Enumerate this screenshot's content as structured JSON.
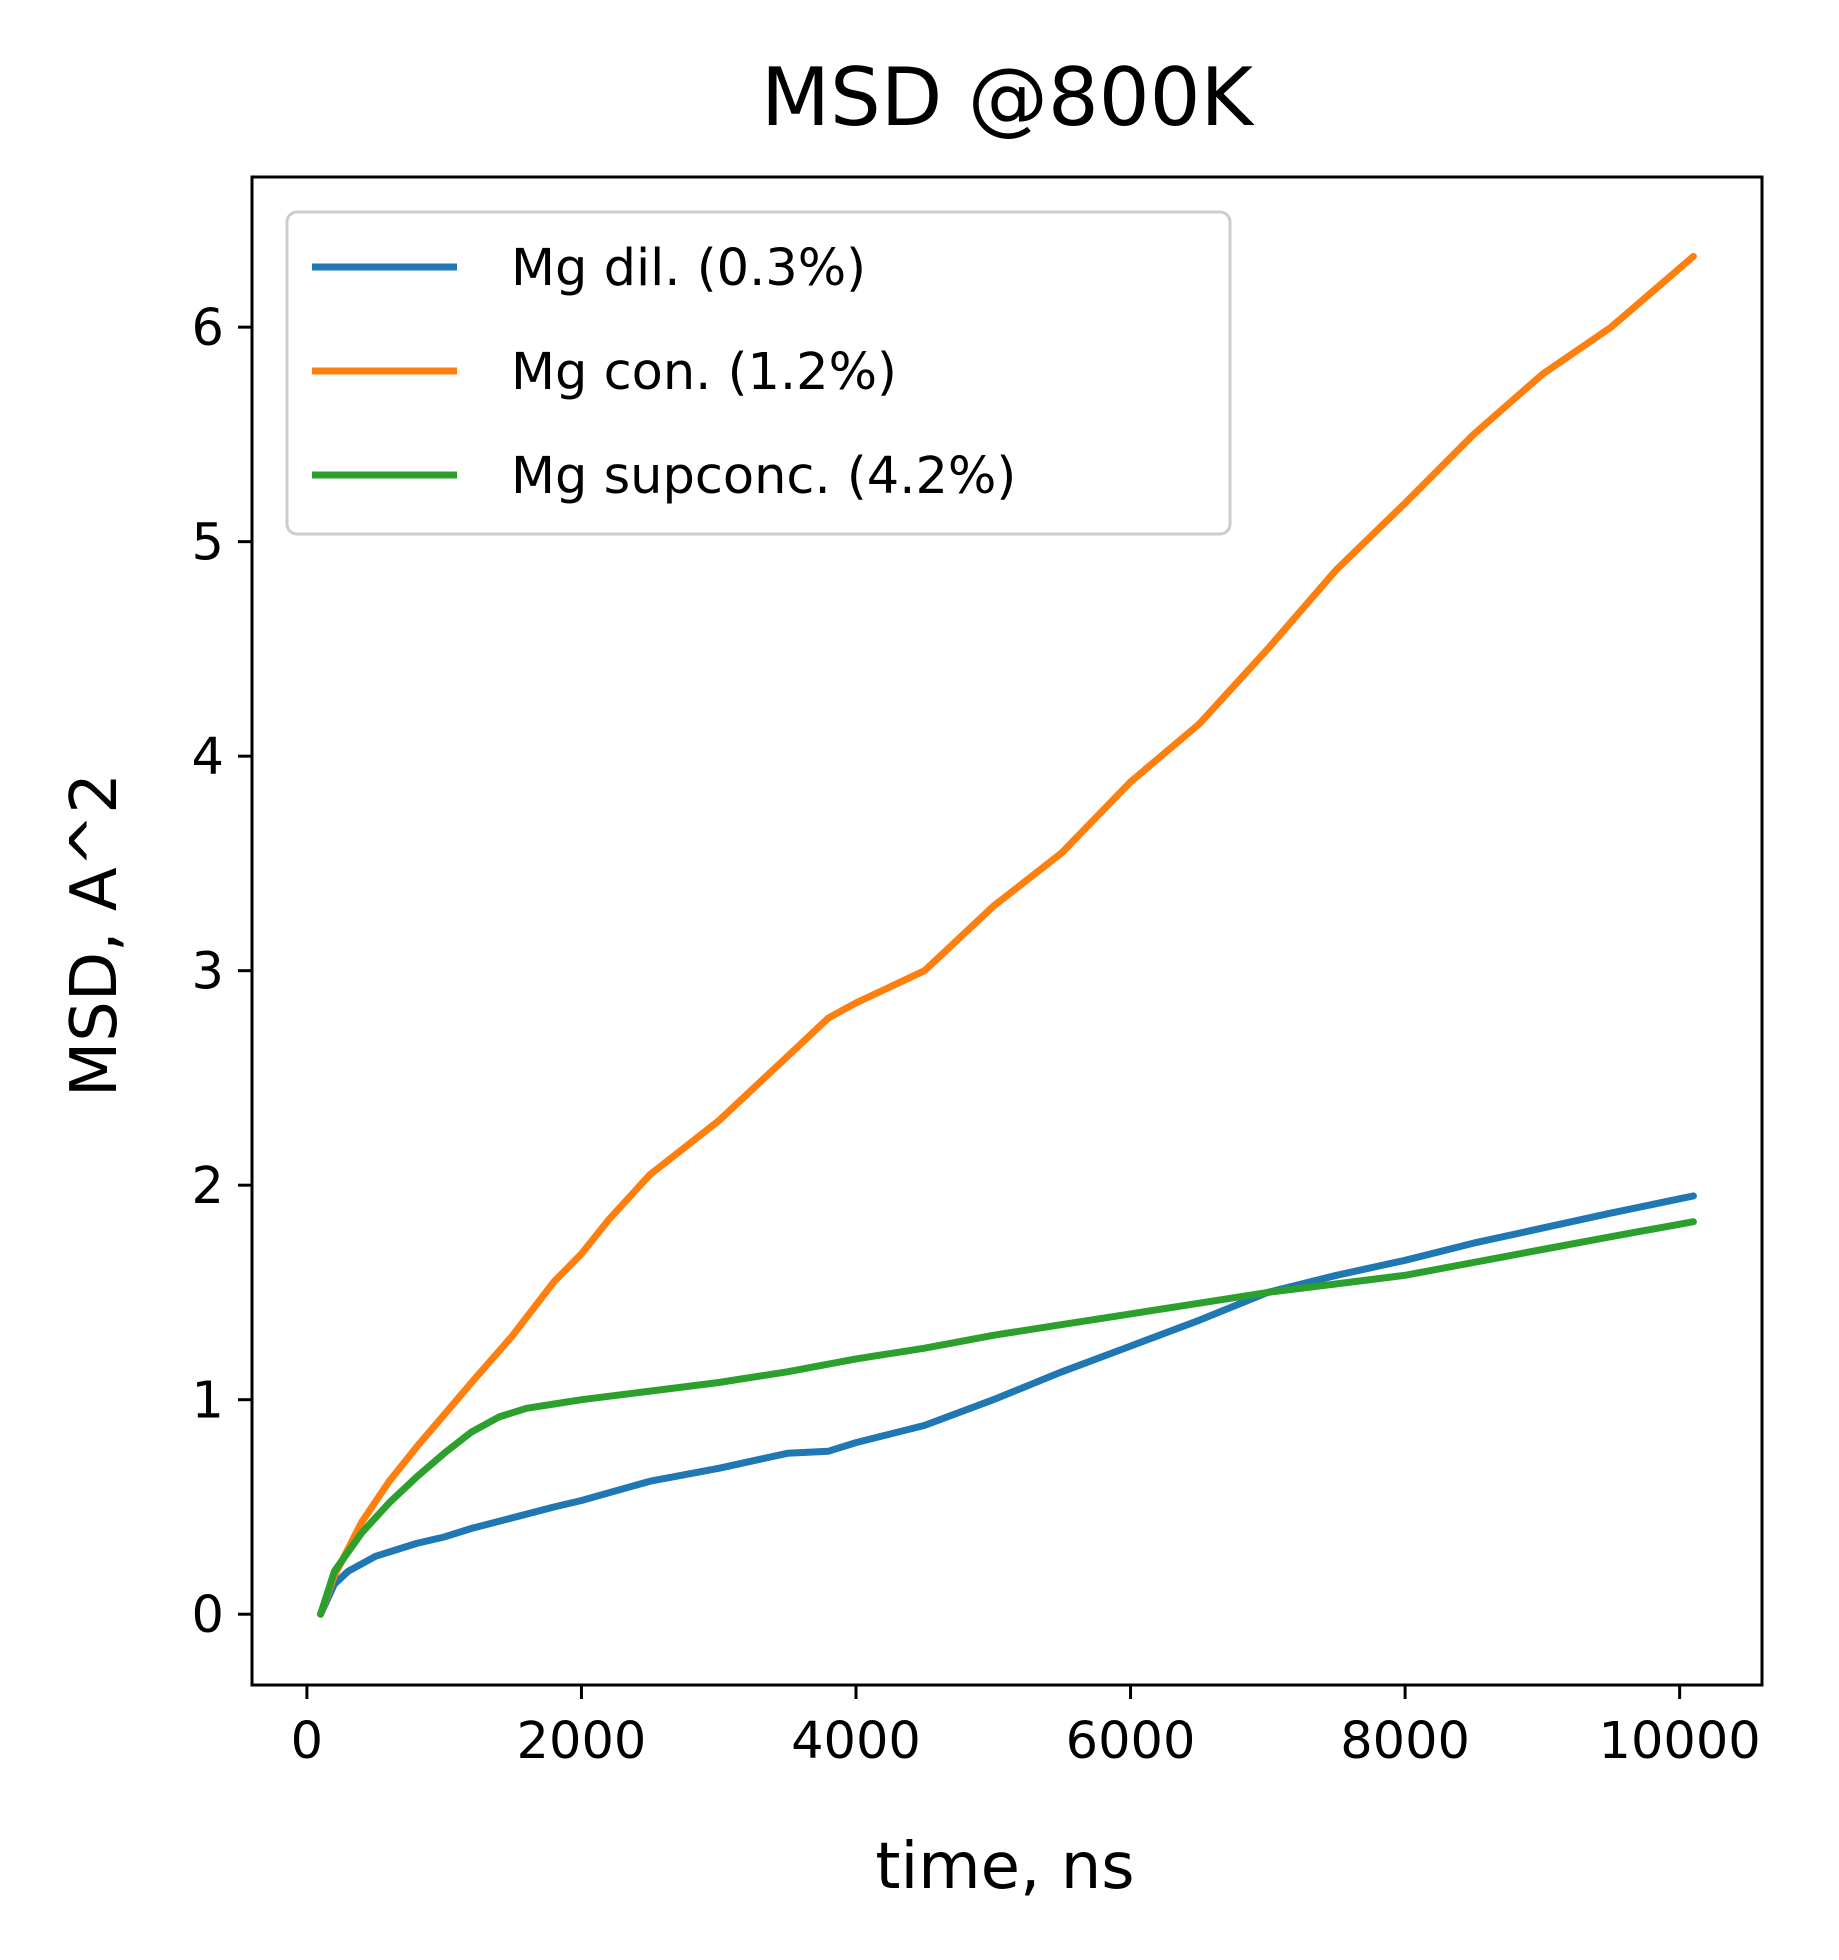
{
  "chart_data": {
    "type": "line",
    "title": "MSD @800K",
    "xlabel": "time, ns",
    "ylabel": "MSD, A^2",
    "xlim": [
      -400,
      10600
    ],
    "ylim": [
      -0.33,
      6.7
    ],
    "xticks": [
      0,
      2000,
      4000,
      6000,
      8000,
      10000
    ],
    "xtick_labels": [
      "0",
      "2000",
      "4000",
      "6000",
      "8000",
      "10000"
    ],
    "yticks": [
      0,
      1,
      2,
      3,
      4,
      5,
      6
    ],
    "ytick_labels": [
      "0",
      "1",
      "2",
      "3",
      "4",
      "5",
      "6"
    ],
    "grid": false,
    "legend_position": "top-left",
    "series": [
      {
        "name": "Mg dil. (0.3%)",
        "color": "#1f77b4",
        "x": [
          100,
          200,
          300,
          500,
          800,
          1000,
          1200,
          1500,
          1800,
          2000,
          2500,
          3000,
          3500,
          3800,
          4000,
          4500,
          5000,
          5500,
          6000,
          6500,
          7000,
          7500,
          8000,
          8500,
          9000,
          9500,
          10100
        ],
        "y": [
          0,
          0.14,
          0.2,
          0.27,
          0.33,
          0.36,
          0.4,
          0.45,
          0.5,
          0.53,
          0.62,
          0.68,
          0.75,
          0.76,
          0.8,
          0.88,
          1.0,
          1.13,
          1.25,
          1.37,
          1.5,
          1.58,
          1.65,
          1.73,
          1.8,
          1.87,
          1.95
        ]
      },
      {
        "name": "Mg con. (1.2%)",
        "color": "#ff7f0e",
        "x": [
          100,
          200,
          400,
          600,
          800,
          1000,
          1200,
          1500,
          1800,
          2000,
          2200,
          2500,
          2800,
          3000,
          3500,
          3800,
          4000,
          4500,
          5000,
          5500,
          6000,
          6500,
          7000,
          7500,
          8000,
          8500,
          9000,
          9500,
          10100
        ],
        "y": [
          0,
          0.18,
          0.43,
          0.62,
          0.78,
          0.93,
          1.08,
          1.3,
          1.55,
          1.68,
          1.84,
          2.05,
          2.2,
          2.3,
          2.6,
          2.78,
          2.85,
          3.0,
          3.3,
          3.55,
          3.88,
          4.15,
          4.5,
          4.87,
          5.18,
          5.5,
          5.78,
          6.0,
          6.33
        ]
      },
      {
        "name": "Mg supconc. (4.2%)",
        "color": "#2ca02c",
        "x": [
          100,
          200,
          400,
          600,
          800,
          1000,
          1200,
          1400,
          1600,
          1800,
          2000,
          2500,
          3000,
          3500,
          4000,
          4500,
          5000,
          5500,
          6000,
          6500,
          7000,
          7500,
          8000,
          8500,
          9000,
          9500,
          10100
        ],
        "y": [
          0,
          0.2,
          0.38,
          0.52,
          0.64,
          0.75,
          0.85,
          0.92,
          0.96,
          0.98,
          1.0,
          1.04,
          1.08,
          1.13,
          1.19,
          1.24,
          1.3,
          1.35,
          1.4,
          1.45,
          1.5,
          1.54,
          1.58,
          1.64,
          1.7,
          1.76,
          1.83
        ]
      }
    ]
  }
}
